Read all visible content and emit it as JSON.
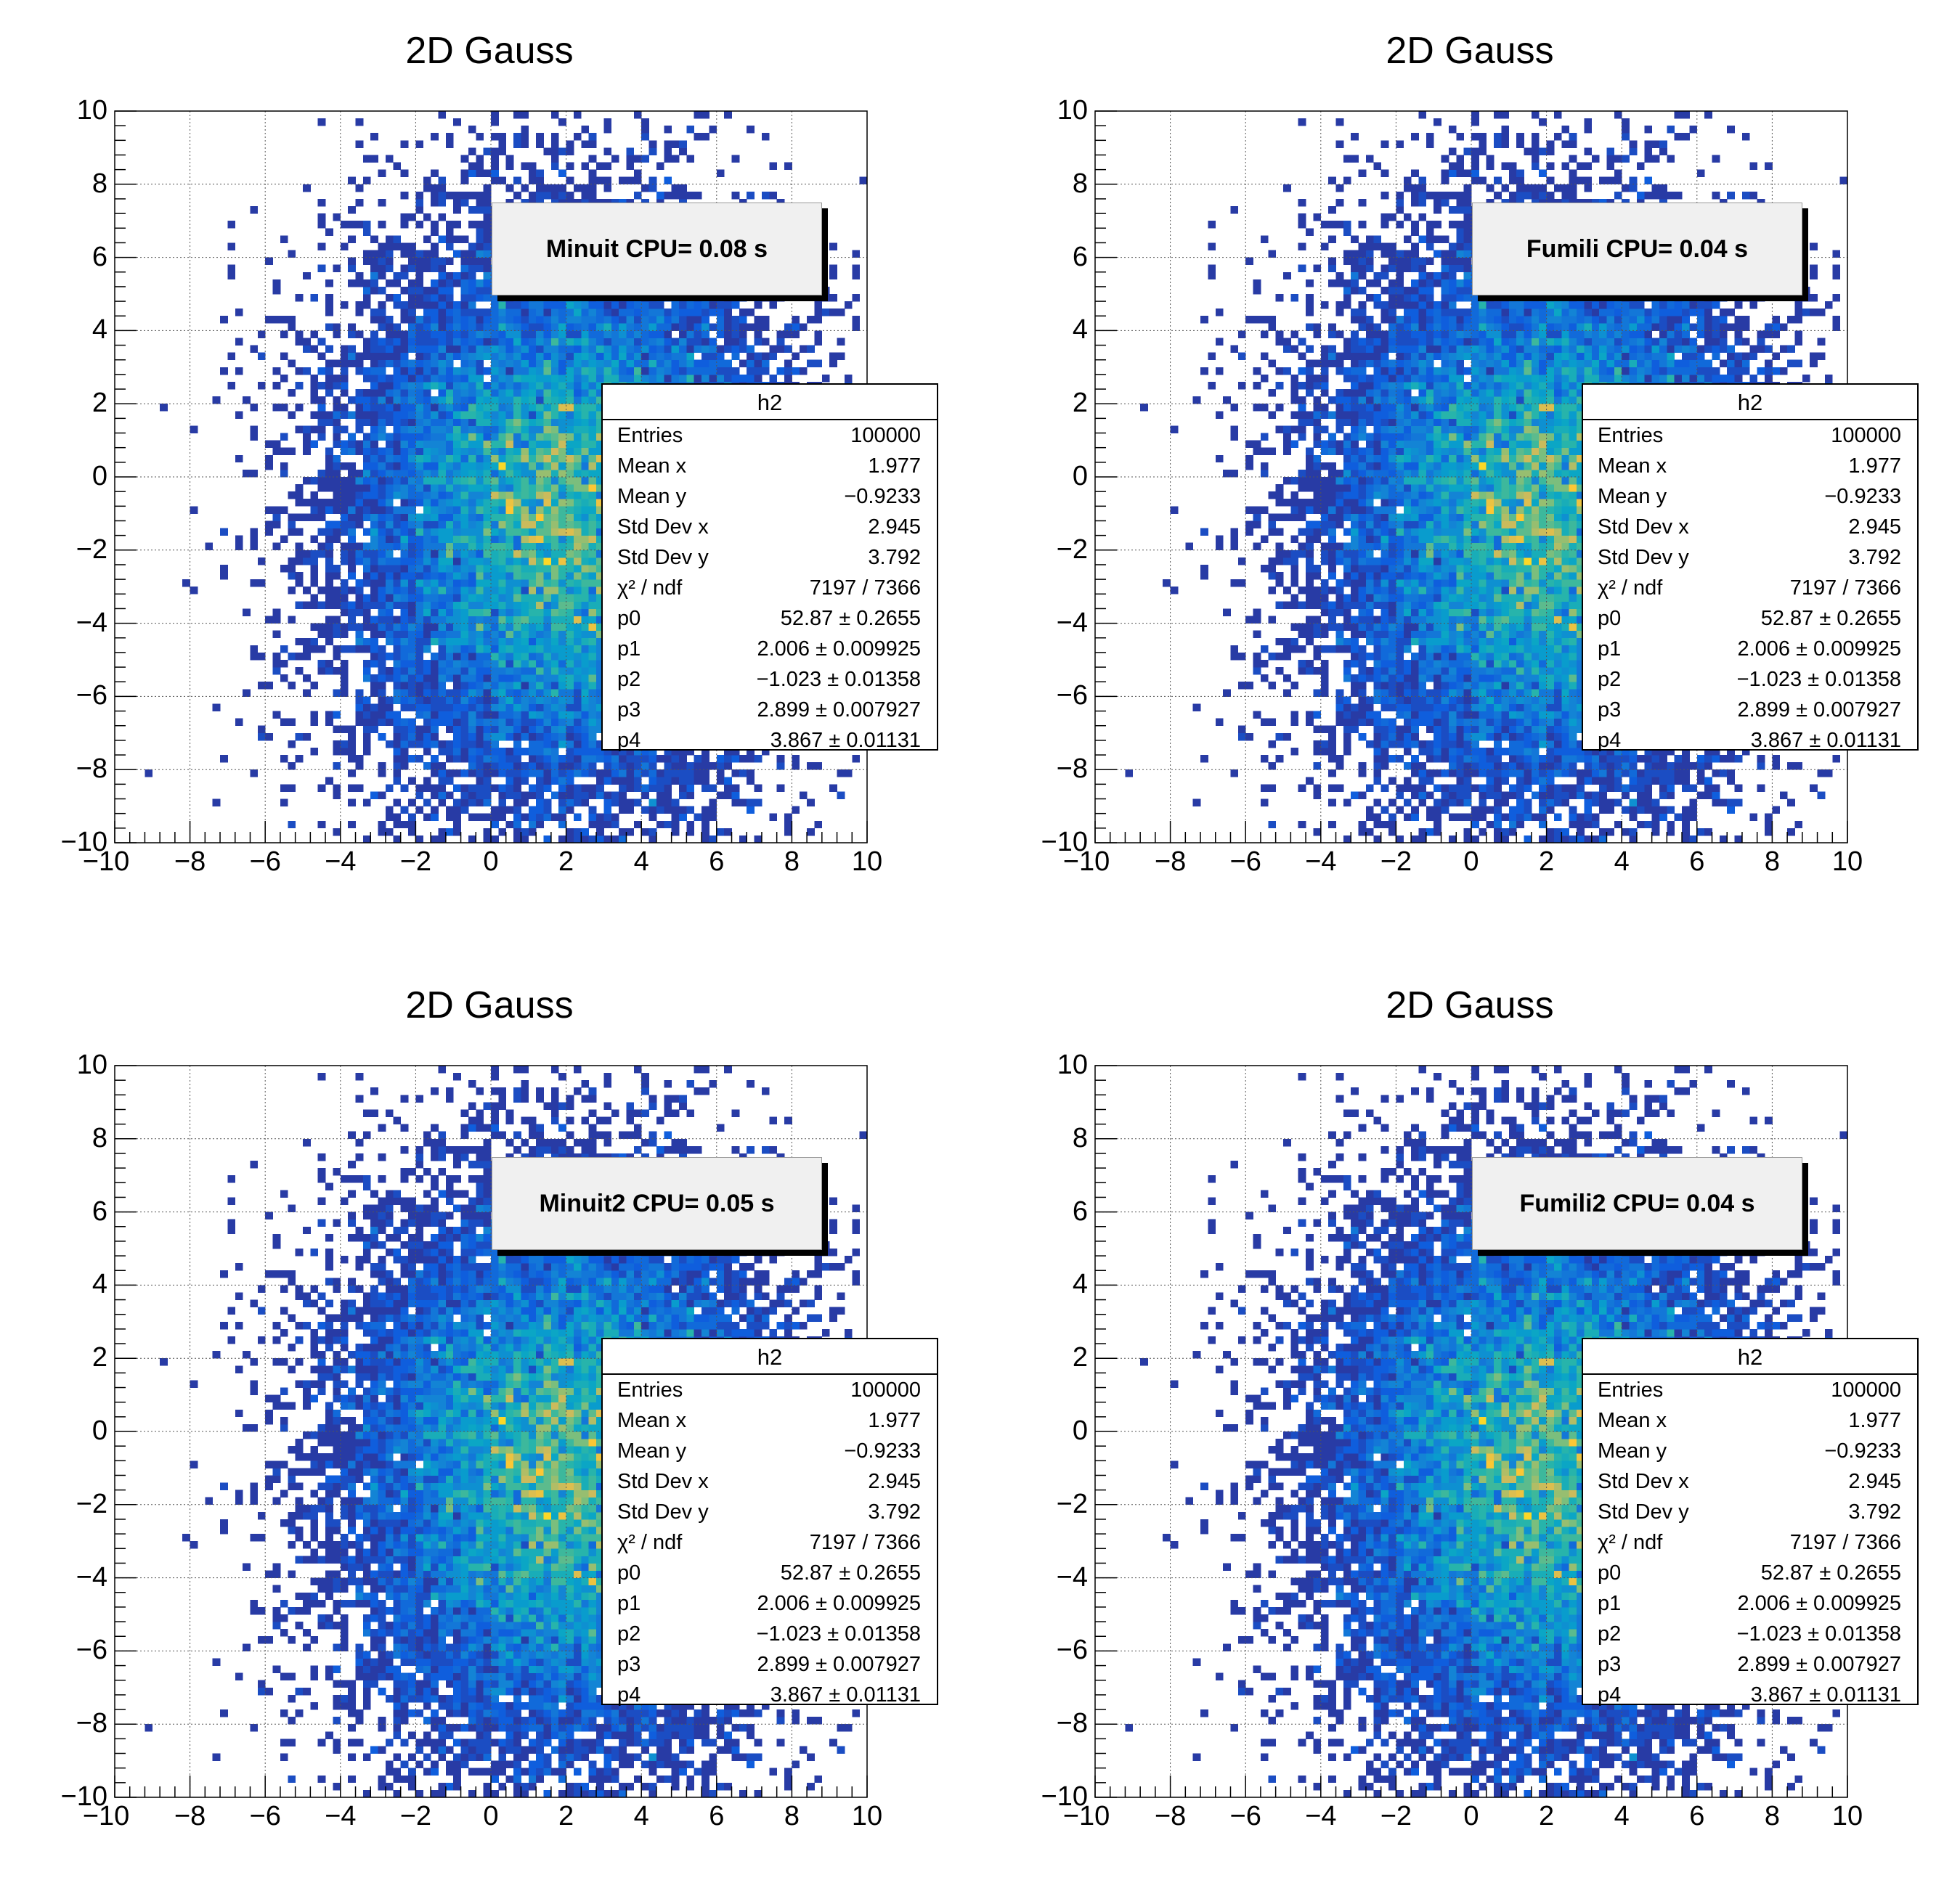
{
  "chart_data": [
    {
      "type": "heatmap",
      "title": "2D Gauss",
      "label": "Minuit CPU= 0.08 s"
    },
    {
      "type": "heatmap",
      "title": "2D Gauss",
      "label": "Fumili CPU= 0.04 s"
    },
    {
      "type": "heatmap",
      "title": "2D Gauss",
      "label": "Minuit2 CPU= 0.05 s"
    },
    {
      "type": "heatmap",
      "title": "2D Gauss",
      "label": "Fumili2 CPU= 0.04 s"
    }
  ],
  "shared": {
    "xlim": [
      -10,
      10
    ],
    "ylim": [
      -10,
      10
    ],
    "bins_x": 100,
    "bins_y": 100,
    "grid": true,
    "x_ticks": [
      "−10",
      "−8",
      "−6",
      "−4",
      "−2",
      "0",
      "2",
      "4",
      "6",
      "8",
      "10"
    ],
    "y_ticks": [
      "−10",
      "−8",
      "−6",
      "−4",
      "−2",
      "0",
      "2",
      "4",
      "6",
      "8",
      "10"
    ],
    "palette": [
      "#352a87",
      "#0f5cdd",
      "#1481d6",
      "#06a4ca",
      "#2eb7a4",
      "#87bf77",
      "#d1bb59",
      "#fec832",
      "#f9fb0e"
    ],
    "fit": {
      "p0": 52.87,
      "p1": 2.006,
      "p2": -1.023,
      "p3": 2.899,
      "p4": 3.867
    },
    "stats": {
      "title": "h2",
      "rows": [
        {
          "label": "Entries",
          "value": "100000"
        },
        {
          "label": "Mean x",
          "value": "1.977"
        },
        {
          "label": "Mean y",
          "value": "−0.9233"
        },
        {
          "label": "Std Dev x",
          "value": "2.945"
        },
        {
          "label": "Std Dev y",
          "value": "3.792"
        },
        {
          "label": "χ² / ndf",
          "value": "7197 / 7366"
        },
        {
          "label": "p0",
          "value": "52.87 ± 0.2655"
        },
        {
          "label": "p1",
          "value": "2.006 ± 0.009925"
        },
        {
          "label": "p2",
          "value": "−1.023 ± 0.01358"
        },
        {
          "label": "p3",
          "value": "2.899 ± 0.007927"
        },
        {
          "label": "p4",
          "value": "3.867 ± 0.01131"
        }
      ]
    }
  }
}
